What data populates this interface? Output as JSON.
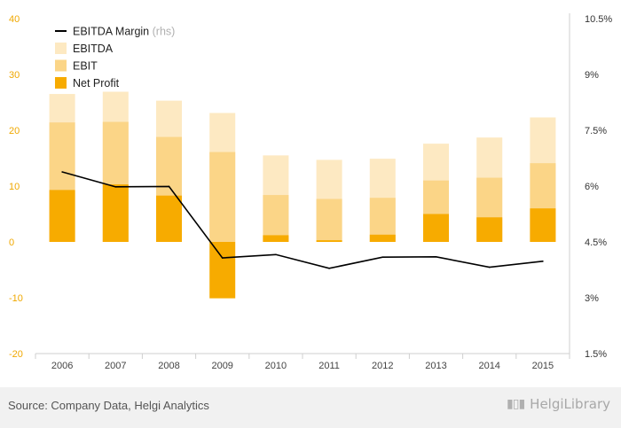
{
  "chart_data": {
    "type": "bar",
    "categories": [
      "2006",
      "2007",
      "2008",
      "2009",
      "2010",
      "2011",
      "2012",
      "2013",
      "2014",
      "2015"
    ],
    "series": [
      {
        "name": "EBITDA",
        "kind": "bar",
        "axis": "left",
        "values": [
          26.5,
          26.9,
          25.3,
          23.1,
          15.5,
          14.7,
          14.9,
          17.6,
          18.7,
          22.3
        ]
      },
      {
        "name": "EBIT",
        "kind": "bar",
        "axis": "left",
        "values": [
          21.4,
          21.5,
          18.8,
          16.1,
          8.4,
          7.7,
          7.9,
          11.0,
          11.5,
          14.1
        ]
      },
      {
        "name": "Net Profit",
        "kind": "bar",
        "axis": "left",
        "values": [
          9.3,
          10.3,
          8.3,
          -10.1,
          1.2,
          0.3,
          1.3,
          5.0,
          4.4,
          6.0
        ]
      },
      {
        "name": "EBITDA Margin",
        "note": "(rhs)",
        "kind": "line",
        "axis": "right",
        "values": [
          6.38,
          5.98,
          5.99,
          4.07,
          4.16,
          3.79,
          4.09,
          4.1,
          3.82,
          3.98
        ]
      }
    ],
    "y_left": {
      "ylim": [
        -20,
        40
      ],
      "ticks": [
        "40",
        "30",
        "20",
        "10",
        "0",
        "-10",
        "-20"
      ]
    },
    "y_right": {
      "ylim": [
        1.5,
        10.5
      ],
      "ticks": [
        "10.5%",
        "9%",
        "7.5%",
        "6%",
        "4.5%",
        "3%",
        "1.5%"
      ]
    },
    "colors": {
      "ebitda": "#fde9c2",
      "ebit": "#fbd587",
      "net_profit": "#f7ab00",
      "margin_line": "#000000",
      "left_ticks": "#f0a800"
    },
    "legend": "top-left",
    "grid": false
  },
  "footer": {
    "source": "Source: Company Data, Helgi Analytics",
    "logo": "HelgiLibrary"
  }
}
